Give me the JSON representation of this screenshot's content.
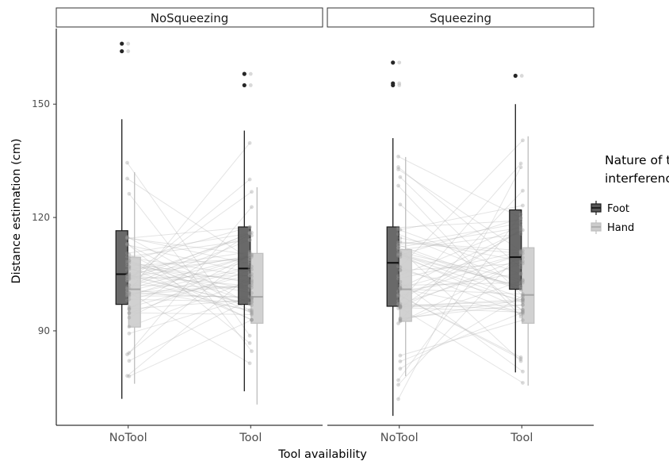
{
  "chart_data": {
    "type": "box",
    "xlabel": "Tool availability",
    "ylabel": "Distance estimation (cm)",
    "ylim": [
      65,
      170
    ],
    "yticks": [
      90,
      120,
      150
    ],
    "categories": [
      "NoTool",
      "Tool"
    ],
    "legend": {
      "title_line1": "Nature of the",
      "title_line2": "interference",
      "placement": "right",
      "items": [
        {
          "name": "Foot",
          "color": "#595959"
        },
        {
          "name": "Hand",
          "color": "#cccccc"
        }
      ]
    },
    "grid": false,
    "facets": [
      {
        "label": "NoSqueezing",
        "boxes": [
          {
            "x": "NoTool",
            "group": "Foot",
            "whisker_low": 72,
            "q1": 97,
            "median": 105,
            "q3": 116.5,
            "whisker_high": 146,
            "outliers": [
              164,
              166
            ]
          },
          {
            "x": "NoTool",
            "group": "Hand",
            "whisker_low": 76,
            "q1": 91,
            "median": 101,
            "q3": 109.5,
            "whisker_high": 132,
            "outliers": []
          },
          {
            "x": "Tool",
            "group": "Foot",
            "whisker_low": 74,
            "q1": 97,
            "median": 106.5,
            "q3": 117.5,
            "whisker_high": 143,
            "outliers": [
              155,
              158
            ]
          },
          {
            "x": "Tool",
            "group": "Hand",
            "whisker_low": 70.5,
            "q1": 92,
            "median": 99,
            "q3": 110.5,
            "whisker_high": 128,
            "outliers": []
          }
        ]
      },
      {
        "label": "Squeezing",
        "boxes": [
          {
            "x": "NoTool",
            "group": "Foot",
            "whisker_low": 67.5,
            "q1": 96.5,
            "median": 108,
            "q3": 117.5,
            "whisker_high": 141,
            "outliers": [
              155,
              155.5,
              161
            ]
          },
          {
            "x": "NoTool",
            "group": "Hand",
            "whisker_low": 78,
            "q1": 92.5,
            "median": 101,
            "q3": 111.5,
            "whisker_high": 136,
            "outliers": []
          },
          {
            "x": "Tool",
            "group": "Foot",
            "whisker_low": 79,
            "q1": 101,
            "median": 109.5,
            "q3": 122,
            "whisker_high": 150,
            "outliers": [
              157.5
            ]
          },
          {
            "x": "Tool",
            "group": "Hand",
            "whisker_low": 75.5,
            "q1": 92,
            "median": 99.5,
            "q3": 112,
            "whisker_high": 141.5,
            "outliers": []
          }
        ]
      }
    ]
  }
}
